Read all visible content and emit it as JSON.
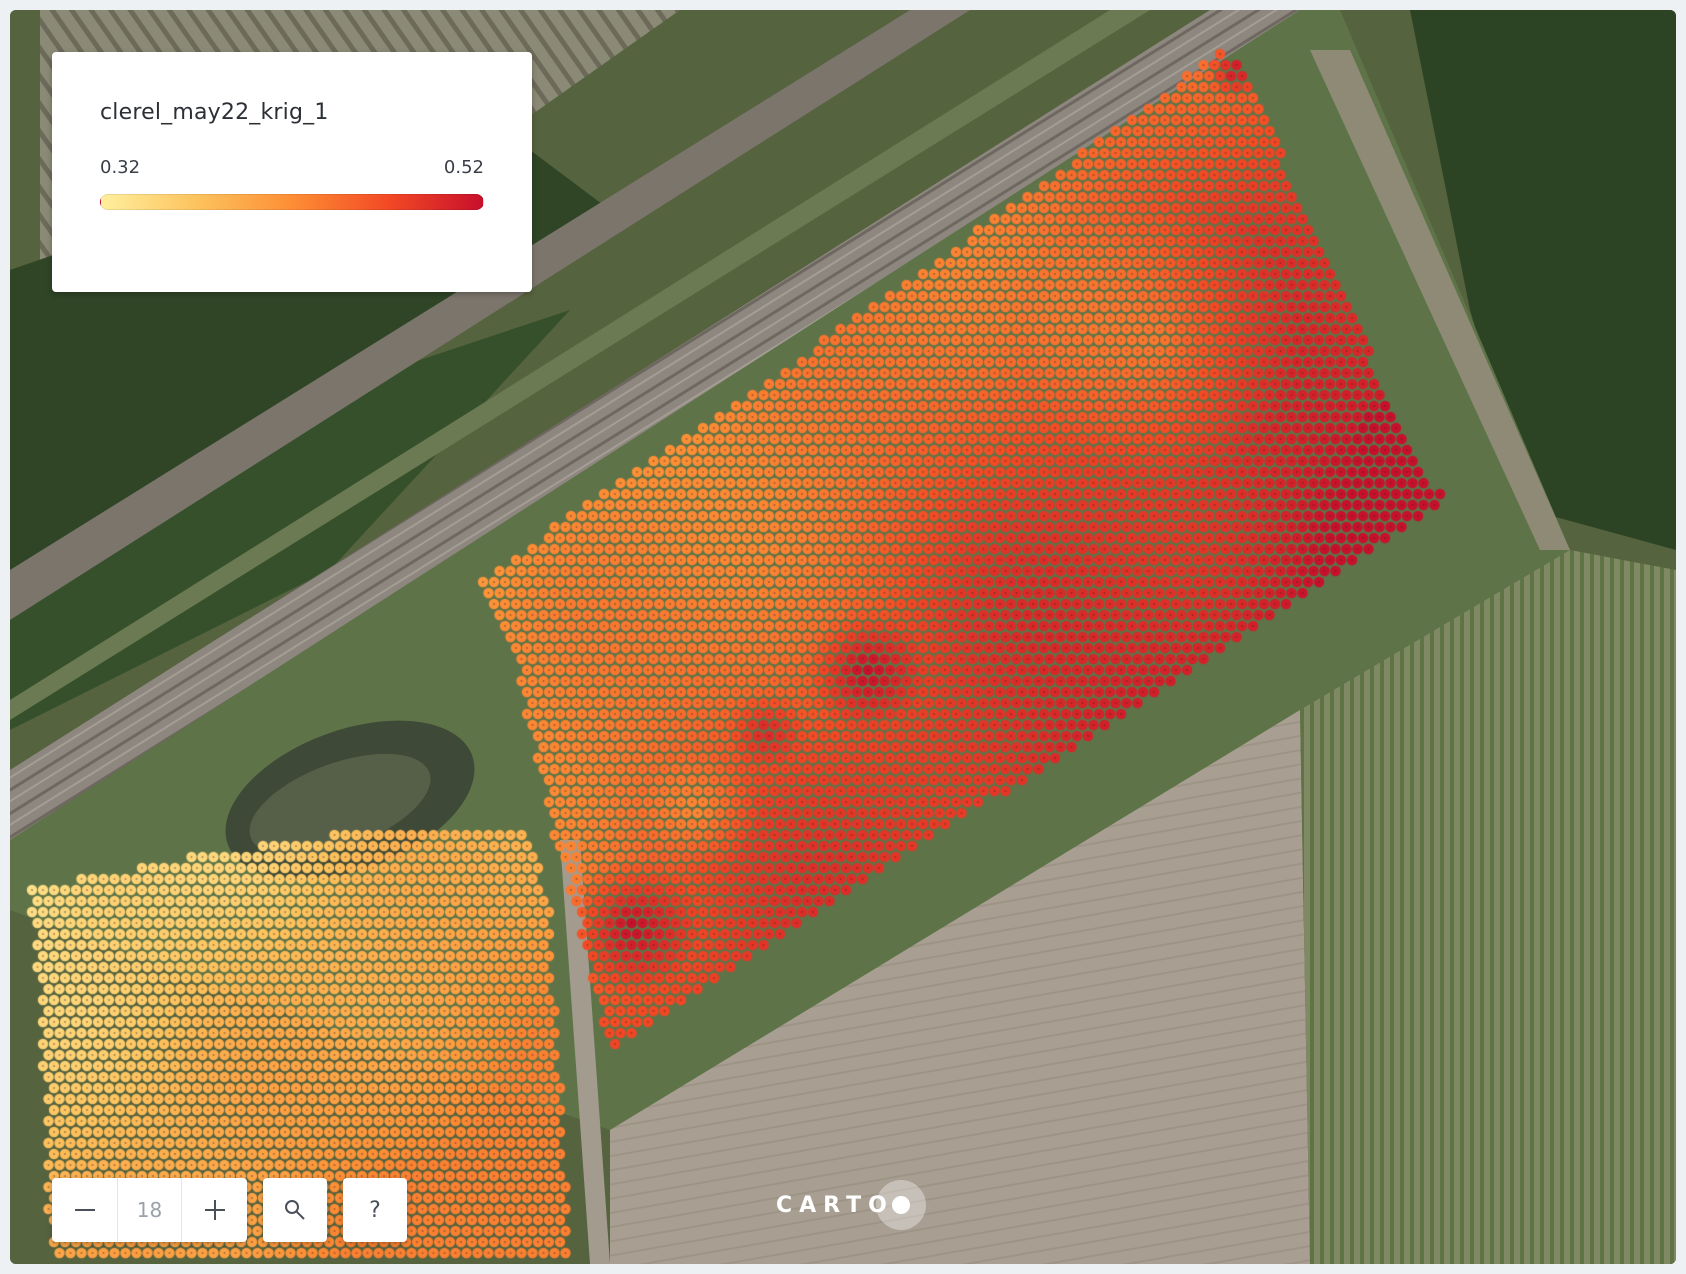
{
  "map": {
    "layer_name": "clerel_may22_krig_1",
    "zoom_level": "18",
    "attribution_logo": "CARTO"
  },
  "legend": {
    "title": "clerel_may22_krig_1",
    "min_label": "0.32",
    "max_label": "0.52",
    "min_value": 0.32,
    "max_value": 0.52,
    "ramp_colors": [
      "#ffef9e",
      "#fdc35e",
      "#fd8e35",
      "#f34a25",
      "#c80f2c"
    ]
  },
  "controls": {
    "zoom_out_icon": "minus-icon",
    "zoom_in_icon": "plus-icon",
    "search_icon": "search-icon",
    "help_label": "?"
  }
}
